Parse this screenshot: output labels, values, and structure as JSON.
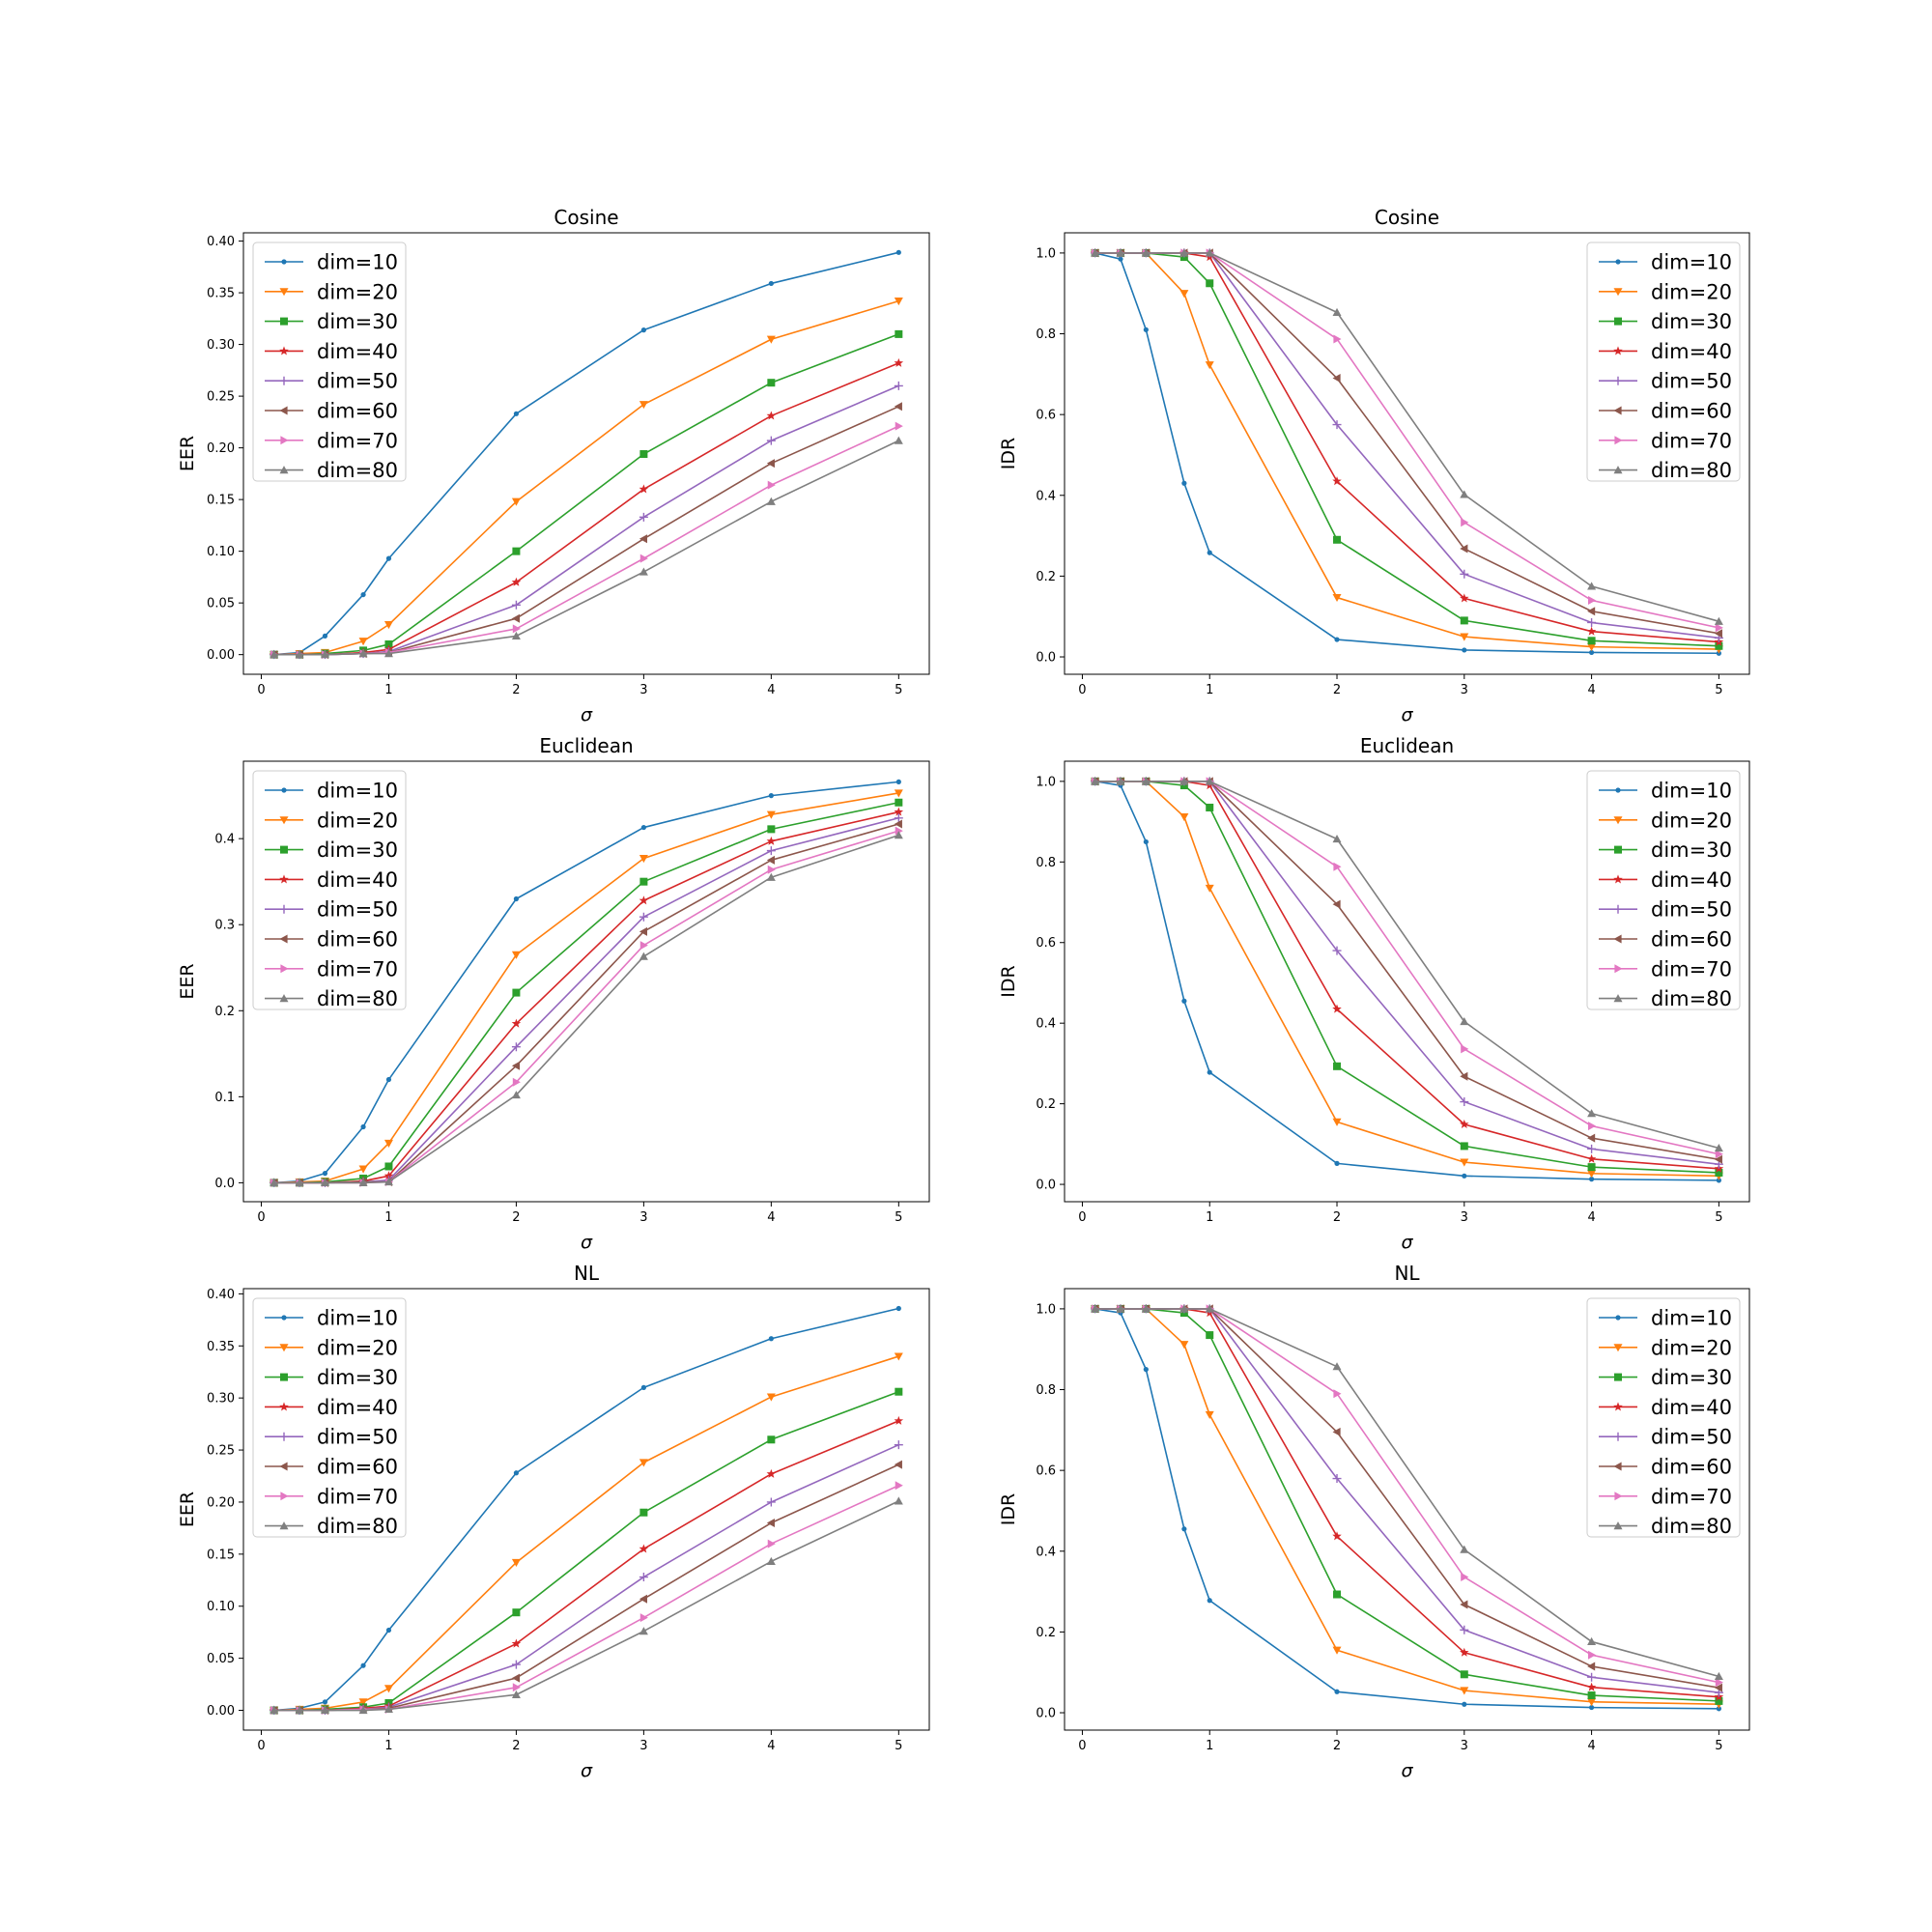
{
  "chart_data": [
    {
      "type": "line",
      "title": "Cosine",
      "xlabel": "σ",
      "ylabel": "EER",
      "x": [
        0.1,
        0.3,
        0.5,
        0.8,
        1,
        2,
        3,
        4,
        5
      ],
      "xticks": [
        "0",
        "1",
        "2",
        "3",
        "4",
        "5"
      ],
      "xtick_values": [
        0,
        1,
        2,
        3,
        4,
        5
      ],
      "yticks": [
        "0.00",
        "0.05",
        "0.10",
        "0.15",
        "0.20",
        "0.25",
        "0.30",
        "0.35",
        "0.40"
      ],
      "ytick_values": [
        0,
        0.05,
        0.1,
        0.15,
        0.2,
        0.25,
        0.3,
        0.35,
        0.4
      ],
      "xlim": [
        -0.14,
        5.24
      ],
      "ylim": [
        -0.019,
        0.408
      ],
      "legend": "upper-left",
      "series": [
        {
          "name": "dim=10",
          "values": [
            0,
            0.002,
            0.018,
            0.058,
            0.093,
            0.233,
            0.314,
            0.359,
            0.389
          ]
        },
        {
          "name": "dim=20",
          "values": [
            0,
            0.001,
            0.002,
            0.013,
            0.029,
            0.148,
            0.242,
            0.305,
            0.342
          ]
        },
        {
          "name": "dim=30",
          "values": [
            0,
            0,
            0.001,
            0.004,
            0.01,
            0.1,
            0.194,
            0.263,
            0.31
          ]
        },
        {
          "name": "dim=40",
          "values": [
            0,
            0,
            0,
            0.002,
            0.005,
            0.07,
            0.16,
            0.231,
            0.282
          ]
        },
        {
          "name": "dim=50",
          "values": [
            0,
            0,
            0,
            0.001,
            0.003,
            0.048,
            0.133,
            0.207,
            0.26
          ]
        },
        {
          "name": "dim=60",
          "values": [
            0,
            0,
            0,
            0.001,
            0.002,
            0.035,
            0.112,
            0.185,
            0.24
          ]
        },
        {
          "name": "dim=70",
          "values": [
            0,
            0,
            0,
            0.001,
            0.002,
            0.025,
            0.093,
            0.164,
            0.221
          ]
        },
        {
          "name": "dim=80",
          "values": [
            0,
            0,
            0,
            0.001,
            0.001,
            0.018,
            0.08,
            0.148,
            0.207
          ]
        }
      ]
    },
    {
      "type": "line",
      "title": "Cosine",
      "xlabel": "σ",
      "ylabel": "IDR",
      "x": [
        0.1,
        0.3,
        0.5,
        0.8,
        1,
        2,
        3,
        4,
        5
      ],
      "xticks": [
        "0",
        "1",
        "2",
        "3",
        "4",
        "5"
      ],
      "xtick_values": [
        0,
        1,
        2,
        3,
        4,
        5
      ],
      "yticks": [
        "0.0",
        "0.2",
        "0.4",
        "0.6",
        "0.8",
        "1.0"
      ],
      "ytick_values": [
        0,
        0.2,
        0.4,
        0.6,
        0.8,
        1.0
      ],
      "xlim": [
        -0.14,
        5.24
      ],
      "ylim": [
        -0.043,
        1.05
      ],
      "legend": "upper-right",
      "series": [
        {
          "name": "dim=10",
          "values": [
            1.0,
            0.985,
            0.81,
            0.43,
            0.258,
            0.043,
            0.017,
            0.011,
            0.009
          ]
        },
        {
          "name": "dim=20",
          "values": [
            1.0,
            1.0,
            1.0,
            0.9,
            0.723,
            0.147,
            0.05,
            0.025,
            0.019
          ]
        },
        {
          "name": "dim=30",
          "values": [
            1.0,
            1.0,
            1.0,
            0.99,
            0.925,
            0.29,
            0.09,
            0.04,
            0.027
          ]
        },
        {
          "name": "dim=40",
          "values": [
            1.0,
            1.0,
            1.0,
            1.0,
            0.99,
            0.435,
            0.145,
            0.063,
            0.037
          ]
        },
        {
          "name": "dim=50",
          "values": [
            1.0,
            1.0,
            1.0,
            1.0,
            1.0,
            0.575,
            0.205,
            0.085,
            0.047
          ]
        },
        {
          "name": "dim=60",
          "values": [
            1.0,
            1.0,
            1.0,
            1.0,
            1.0,
            0.69,
            0.268,
            0.113,
            0.058
          ]
        },
        {
          "name": "dim=70",
          "values": [
            1.0,
            1.0,
            1.0,
            1.0,
            1.0,
            0.787,
            0.333,
            0.14,
            0.072
          ]
        },
        {
          "name": "dim=80",
          "values": [
            1.0,
            1.0,
            1.0,
            1.0,
            1.0,
            0.853,
            0.402,
            0.175,
            0.088
          ]
        }
      ]
    },
    {
      "type": "line",
      "title": "Euclidean",
      "xlabel": "σ",
      "ylabel": "EER",
      "x": [
        0.1,
        0.3,
        0.5,
        0.8,
        1,
        2,
        3,
        4,
        5
      ],
      "xticks": [
        "0",
        "1",
        "2",
        "3",
        "4",
        "5"
      ],
      "xtick_values": [
        0,
        1,
        2,
        3,
        4,
        5
      ],
      "yticks": [
        "0.0",
        "0.1",
        "0.2",
        "0.3",
        "0.4"
      ],
      "ytick_values": [
        0,
        0.1,
        0.2,
        0.3,
        0.4
      ],
      "xlim": [
        -0.14,
        5.24
      ],
      "ylim": [
        -0.022,
        0.49
      ],
      "legend": "upper-left",
      "series": [
        {
          "name": "dim=10",
          "values": [
            0,
            0.002,
            0.011,
            0.065,
            0.12,
            0.33,
            0.413,
            0.45,
            0.466
          ]
        },
        {
          "name": "dim=20",
          "values": [
            0,
            0.001,
            0.002,
            0.016,
            0.046,
            0.265,
            0.377,
            0.428,
            0.453
          ]
        },
        {
          "name": "dim=30",
          "values": [
            0,
            0,
            0.001,
            0.005,
            0.019,
            0.221,
            0.35,
            0.411,
            0.442
          ]
        },
        {
          "name": "dim=40",
          "values": [
            0,
            0,
            0,
            0.002,
            0.008,
            0.185,
            0.328,
            0.397,
            0.431
          ]
        },
        {
          "name": "dim=50",
          "values": [
            0,
            0,
            0,
            0.001,
            0.003,
            0.158,
            0.309,
            0.386,
            0.424
          ]
        },
        {
          "name": "dim=60",
          "values": [
            0,
            0,
            0,
            0.001,
            0.001,
            0.136,
            0.292,
            0.375,
            0.417
          ]
        },
        {
          "name": "dim=70",
          "values": [
            0,
            0,
            0,
            0,
            0.001,
            0.117,
            0.276,
            0.364,
            0.409
          ]
        },
        {
          "name": "dim=80",
          "values": [
            0,
            0,
            0,
            0,
            0.001,
            0.102,
            0.263,
            0.355,
            0.404
          ]
        }
      ]
    },
    {
      "type": "line",
      "title": "Euclidean",
      "xlabel": "σ",
      "ylabel": "IDR",
      "x": [
        0.1,
        0.3,
        0.5,
        0.8,
        1,
        2,
        3,
        4,
        5
      ],
      "xticks": [
        "0",
        "1",
        "2",
        "3",
        "4",
        "5"
      ],
      "xtick_values": [
        0,
        1,
        2,
        3,
        4,
        5
      ],
      "yticks": [
        "0.0",
        "0.2",
        "0.4",
        "0.6",
        "0.8",
        "1.0"
      ],
      "ytick_values": [
        0,
        0.2,
        0.4,
        0.6,
        0.8,
        1.0
      ],
      "xlim": [
        -0.14,
        5.24
      ],
      "ylim": [
        -0.043,
        1.05
      ],
      "legend": "upper-right",
      "series": [
        {
          "name": "dim=10",
          "values": [
            1.0,
            0.99,
            0.85,
            0.455,
            0.278,
            0.052,
            0.021,
            0.013,
            0.01
          ]
        },
        {
          "name": "dim=20",
          "values": [
            1.0,
            1.0,
            1.0,
            0.912,
            0.735,
            0.155,
            0.055,
            0.027,
            0.021
          ]
        },
        {
          "name": "dim=30",
          "values": [
            1.0,
            1.0,
            1.0,
            0.99,
            0.935,
            0.293,
            0.095,
            0.043,
            0.029
          ]
        },
        {
          "name": "dim=40",
          "values": [
            1.0,
            1.0,
            1.0,
            1.0,
            0.99,
            0.435,
            0.149,
            0.063,
            0.039
          ]
        },
        {
          "name": "dim=50",
          "values": [
            1.0,
            1.0,
            1.0,
            1.0,
            1.0,
            0.58,
            0.205,
            0.088,
            0.05
          ]
        },
        {
          "name": "dim=60",
          "values": [
            1.0,
            1.0,
            1.0,
            1.0,
            1.0,
            0.695,
            0.268,
            0.115,
            0.062
          ]
        },
        {
          "name": "dim=70",
          "values": [
            1.0,
            1.0,
            1.0,
            1.0,
            1.0,
            0.788,
            0.336,
            0.145,
            0.075
          ]
        },
        {
          "name": "dim=80",
          "values": [
            1.0,
            1.0,
            1.0,
            1.0,
            1.0,
            0.857,
            0.404,
            0.176,
            0.09
          ]
        }
      ]
    },
    {
      "type": "line",
      "title": "NL",
      "xlabel": "σ",
      "ylabel": "EER",
      "x": [
        0.1,
        0.3,
        0.5,
        0.8,
        1,
        2,
        3,
        4,
        5
      ],
      "xticks": [
        "0",
        "1",
        "2",
        "3",
        "4",
        "5"
      ],
      "xtick_values": [
        0,
        1,
        2,
        3,
        4,
        5
      ],
      "yticks": [
        "0.00",
        "0.05",
        "0.10",
        "0.15",
        "0.20",
        "0.25",
        "0.30",
        "0.35",
        "0.40"
      ],
      "ytick_values": [
        0,
        0.05,
        0.1,
        0.15,
        0.2,
        0.25,
        0.3,
        0.35,
        0.4
      ],
      "xlim": [
        -0.14,
        5.24
      ],
      "ylim": [
        -0.019,
        0.405
      ],
      "legend": "upper-left",
      "series": [
        {
          "name": "dim=10",
          "values": [
            0,
            0.002,
            0.008,
            0.043,
            0.077,
            0.228,
            0.31,
            0.357,
            0.386
          ]
        },
        {
          "name": "dim=20",
          "values": [
            0,
            0.001,
            0.002,
            0.008,
            0.021,
            0.142,
            0.238,
            0.301,
            0.34
          ]
        },
        {
          "name": "dim=30",
          "values": [
            0,
            0,
            0.001,
            0.003,
            0.007,
            0.094,
            0.19,
            0.26,
            0.306
          ]
        },
        {
          "name": "dim=40",
          "values": [
            0,
            0,
            0,
            0.002,
            0.004,
            0.064,
            0.155,
            0.227,
            0.278
          ]
        },
        {
          "name": "dim=50",
          "values": [
            0,
            0,
            0,
            0.001,
            0.003,
            0.044,
            0.128,
            0.2,
            0.255
          ]
        },
        {
          "name": "dim=60",
          "values": [
            0,
            0,
            0,
            0.001,
            0.002,
            0.031,
            0.107,
            0.18,
            0.236
          ]
        },
        {
          "name": "dim=70",
          "values": [
            0,
            0,
            0,
            0.001,
            0.001,
            0.022,
            0.089,
            0.16,
            0.216
          ]
        },
        {
          "name": "dim=80",
          "values": [
            0,
            0,
            0,
            0,
            0.001,
            0.015,
            0.076,
            0.143,
            0.201
          ]
        }
      ]
    },
    {
      "type": "line",
      "title": "NL",
      "xlabel": "σ",
      "ylabel": "IDR",
      "x": [
        0.1,
        0.3,
        0.5,
        0.8,
        1,
        2,
        3,
        4,
        5
      ],
      "xticks": [
        "0",
        "1",
        "2",
        "3",
        "4",
        "5"
      ],
      "xtick_values": [
        0,
        1,
        2,
        3,
        4,
        5
      ],
      "yticks": [
        "0.0",
        "0.2",
        "0.4",
        "0.6",
        "0.8",
        "1.0"
      ],
      "ytick_values": [
        0,
        0.2,
        0.4,
        0.6,
        0.8,
        1.0
      ],
      "xlim": [
        -0.14,
        5.24
      ],
      "ylim": [
        -0.043,
        1.05
      ],
      "legend": "upper-right",
      "series": [
        {
          "name": "dim=10",
          "values": [
            1.0,
            0.99,
            0.85,
            0.455,
            0.278,
            0.052,
            0.021,
            0.013,
            0.01
          ]
        },
        {
          "name": "dim=20",
          "values": [
            1.0,
            1.0,
            1.0,
            0.912,
            0.738,
            0.155,
            0.055,
            0.027,
            0.021
          ]
        },
        {
          "name": "dim=30",
          "values": [
            1.0,
            1.0,
            1.0,
            0.99,
            0.935,
            0.293,
            0.095,
            0.043,
            0.029
          ]
        },
        {
          "name": "dim=40",
          "values": [
            1.0,
            1.0,
            1.0,
            1.0,
            0.99,
            0.437,
            0.149,
            0.063,
            0.039
          ]
        },
        {
          "name": "dim=50",
          "values": [
            1.0,
            1.0,
            1.0,
            1.0,
            1.0,
            0.58,
            0.205,
            0.088,
            0.05
          ]
        },
        {
          "name": "dim=60",
          "values": [
            1.0,
            1.0,
            1.0,
            1.0,
            1.0,
            0.695,
            0.268,
            0.115,
            0.062
          ]
        },
        {
          "name": "dim=70",
          "values": [
            1.0,
            1.0,
            1.0,
            1.0,
            1.0,
            0.79,
            0.336,
            0.143,
            0.075
          ]
        },
        {
          "name": "dim=80",
          "values": [
            1.0,
            1.0,
            1.0,
            1.0,
            1.0,
            0.857,
            0.404,
            0.176,
            0.09
          ]
        }
      ]
    }
  ],
  "series_style": [
    {
      "color": "#1f77b4",
      "marker": "point"
    },
    {
      "color": "#ff7f0e",
      "marker": "triangle-down"
    },
    {
      "color": "#2ca02c",
      "marker": "square"
    },
    {
      "color": "#d62728",
      "marker": "star"
    },
    {
      "color": "#9467bd",
      "marker": "plus"
    },
    {
      "color": "#8c564b",
      "marker": "triangle-left"
    },
    {
      "color": "#e377c2",
      "marker": "triangle-right"
    },
    {
      "color": "#7f7f7f",
      "marker": "triangle-up"
    }
  ]
}
